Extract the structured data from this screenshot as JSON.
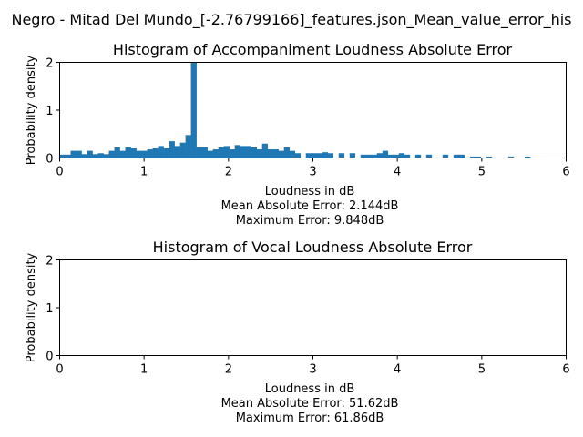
{
  "figure": {
    "suptitle": "Negro - Mitad Del Mundo_[-2.76799166]_features.json_Mean_value_error_his"
  },
  "chart_data": [
    {
      "type": "bar",
      "title": "Histogram of Accompaniment Loudness Absolute Error",
      "xlabel": "Loudness in dB",
      "ylabel": "Probability density",
      "xlim": [
        0,
        6
      ],
      "ylim": [
        0,
        2
      ],
      "xticks": [
        "0",
        "1",
        "2",
        "3",
        "4",
        "5",
        "6"
      ],
      "yticks": [
        "0",
        "1",
        "2"
      ],
      "caption_lines": [
        "Mean Absolute Error: 2.144dB",
        "Maximum Error: 9.848dB"
      ],
      "color": "#1f77b4",
      "bin_width": 0.0648,
      "bin_start": 0.0,
      "values": [
        0.07,
        0.07,
        0.15,
        0.15,
        0.08,
        0.15,
        0.08,
        0.1,
        0.08,
        0.15,
        0.22,
        0.15,
        0.22,
        0.2,
        0.15,
        0.15,
        0.18,
        0.2,
        0.25,
        0.2,
        0.35,
        0.25,
        0.32,
        0.48,
        2.0,
        0.22,
        0.22,
        0.15,
        0.18,
        0.22,
        0.25,
        0.18,
        0.27,
        0.25,
        0.25,
        0.22,
        0.18,
        0.3,
        0.18,
        0.18,
        0.15,
        0.22,
        0.15,
        0.1,
        0.0,
        0.1,
        0.1,
        0.1,
        0.12,
        0.1,
        0.0,
        0.1,
        0.0,
        0.1,
        0.0,
        0.07,
        0.07,
        0.07,
        0.1,
        0.15,
        0.07,
        0.07,
        0.1,
        0.07,
        0.0,
        0.07,
        0.0,
        0.07,
        0.0,
        0.0,
        0.07,
        0.0,
        0.07,
        0.07,
        0.0,
        0.03,
        0.03,
        0.0,
        0.03,
        0.0,
        0.0,
        0.0,
        0.03,
        0.0,
        0.0,
        0.03,
        0.0,
        0.0,
        0.0,
        0.0
      ]
    },
    {
      "type": "bar",
      "title": "Histogram of Vocal Loudness Absolute Error",
      "xlabel": "Loudness in dB",
      "ylabel": "Probability density",
      "xlim": [
        0,
        6
      ],
      "ylim": [
        0,
        2
      ],
      "xticks": [
        "0",
        "1",
        "2",
        "3",
        "4",
        "5",
        "6"
      ],
      "yticks": [
        "0",
        "1",
        "2"
      ],
      "caption_lines": [
        "Mean Absolute Error: 51.62dB",
        "Maximum Error: 61.86dB"
      ],
      "color": "#1f77b4",
      "bin_width": 0.0648,
      "bin_start": 0.0,
      "values": []
    }
  ]
}
